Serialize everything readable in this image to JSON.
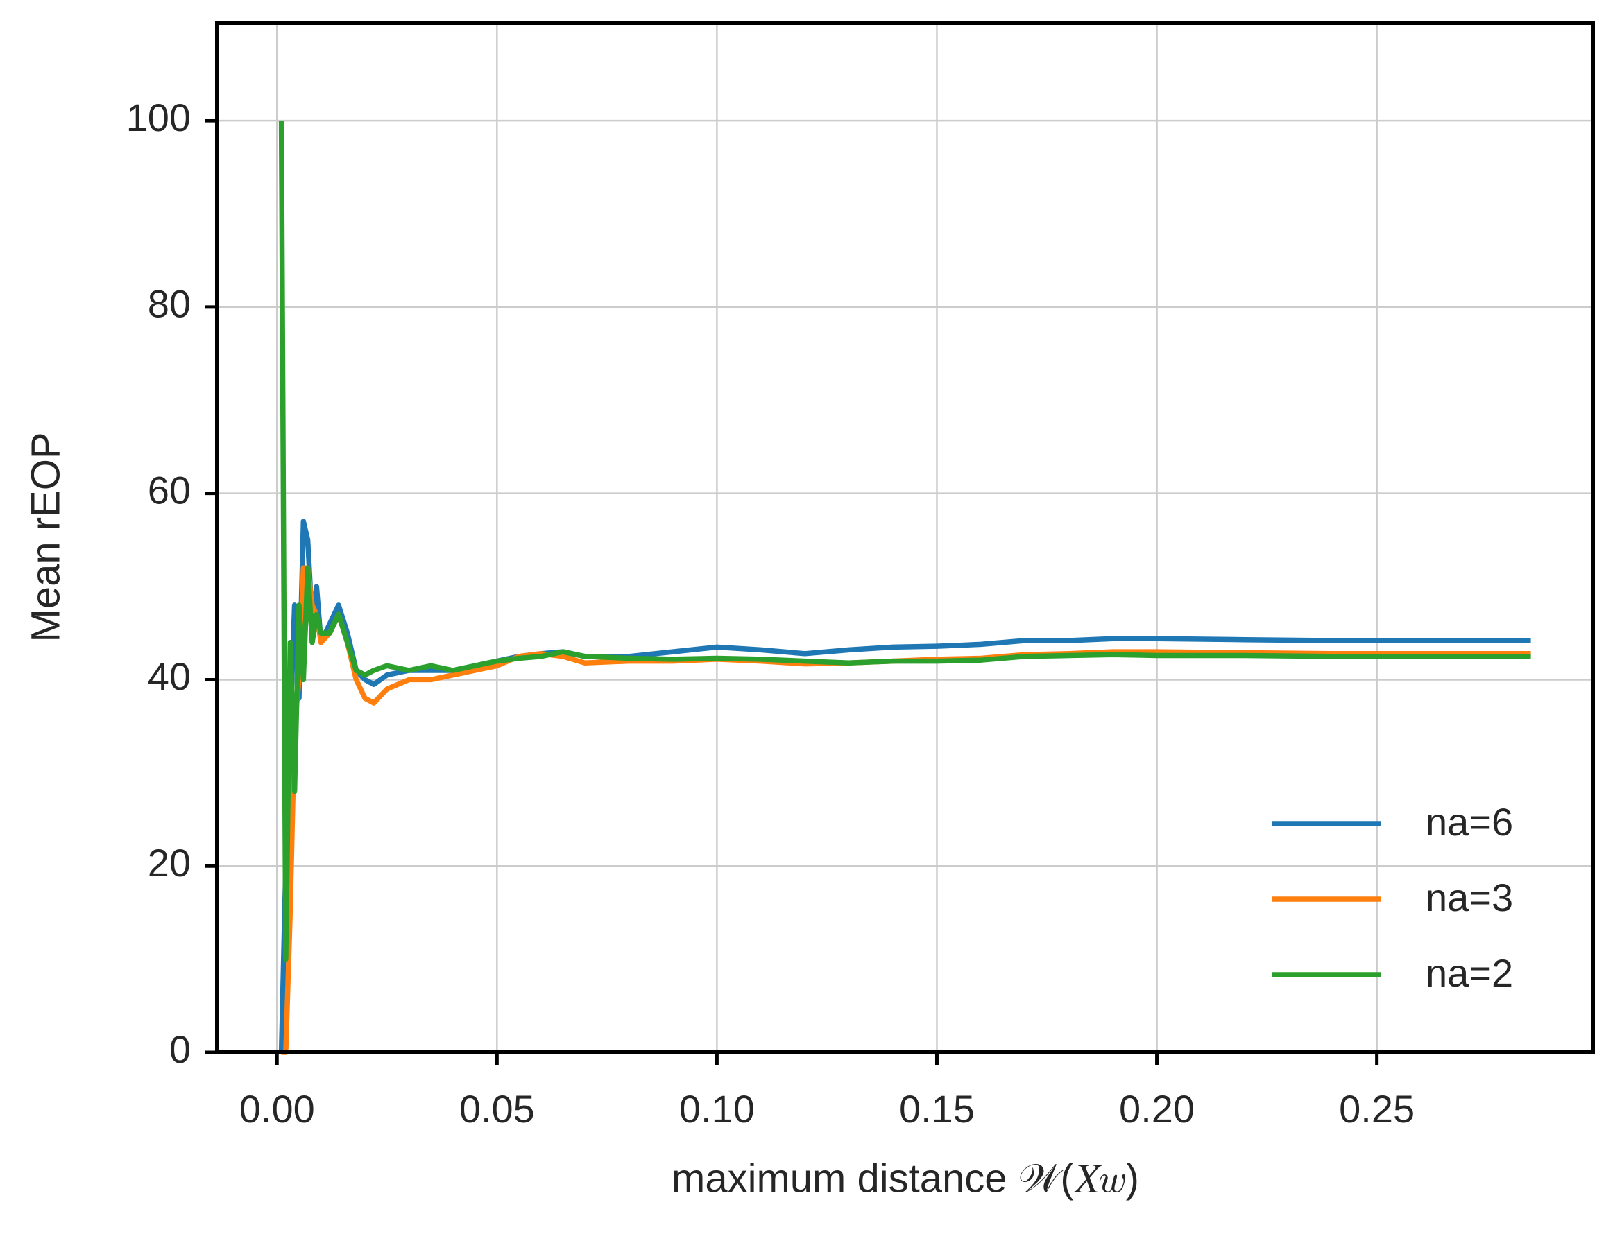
{
  "chart_data": {
    "type": "line",
    "xlabel": "maximum distance 𝒲(𝑋𝑤)",
    "ylabel": "Mean rEOP",
    "x": [
      0.001,
      0.002,
      0.003,
      0.004,
      0.005,
      0.006,
      0.007,
      0.008,
      0.009,
      0.01,
      0.012,
      0.014,
      0.016,
      0.018,
      0.02,
      0.022,
      0.025,
      0.03,
      0.035,
      0.04,
      0.045,
      0.05,
      0.055,
      0.06,
      0.065,
      0.07,
      0.08,
      0.09,
      0.1,
      0.11,
      0.12,
      0.13,
      0.14,
      0.15,
      0.16,
      0.17,
      0.18,
      0.19,
      0.2,
      0.22,
      0.24,
      0.26,
      0.285
    ],
    "series": [
      {
        "name": "na=6",
        "color": "#1f77b4",
        "values": [
          0,
          20,
          35,
          48,
          38,
          57,
          55,
          46,
          50,
          44,
          46,
          48,
          45,
          41,
          40,
          39.5,
          40.5,
          41,
          41,
          41,
          41.5,
          42,
          42.5,
          42.8,
          43,
          42.5,
          42.5,
          43,
          43.5,
          43.2,
          42.8,
          43.2,
          43.5,
          43.6,
          43.8,
          44.2,
          44.2,
          44.4,
          44.4,
          44.3,
          44.2,
          44.2,
          44.2
        ]
      },
      {
        "name": "na=3",
        "color": "#ff7f0e",
        "values": [
          0,
          0,
          15,
          35,
          40,
          52,
          52,
          48,
          47,
          44,
          45,
          47,
          44,
          40,
          38,
          37.5,
          39,
          40,
          40,
          40.5,
          41,
          41.5,
          42.5,
          42.8,
          42.5,
          41.8,
          42,
          42,
          42.2,
          42,
          41.7,
          41.8,
          42,
          42.2,
          42.3,
          42.7,
          42.8,
          43,
          43,
          42.9,
          42.8,
          42.8,
          42.8
        ]
      },
      {
        "name": "na=2",
        "color": "#2ca02c",
        "values": [
          100,
          10,
          44,
          28,
          48,
          40,
          52,
          44,
          47,
          45,
          45,
          47,
          44,
          41,
          40.5,
          41,
          41.5,
          41,
          41.5,
          41,
          41.5,
          42,
          42.3,
          42.5,
          43,
          42.5,
          42.3,
          42.2,
          42.3,
          42.2,
          42,
          41.8,
          42,
          42,
          42.1,
          42.5,
          42.6,
          42.7,
          42.6,
          42.6,
          42.5,
          42.5,
          42.5
        ]
      }
    ],
    "xlim": [
      -0.0136,
      0.2991
    ],
    "ylim": [
      0,
      110.5
    ],
    "xticks": [
      {
        "value": 0,
        "label": "0.00"
      },
      {
        "value": 0.05,
        "label": "0.05"
      },
      {
        "value": 0.1,
        "label": "0.10"
      },
      {
        "value": 0.15,
        "label": "0.15"
      },
      {
        "value": 0.2,
        "label": "0.20"
      },
      {
        "value": 0.25,
        "label": "0.25"
      }
    ],
    "yticks": [
      0,
      20,
      40,
      60,
      80,
      100
    ],
    "grid": true,
    "legend": "lower right"
  }
}
